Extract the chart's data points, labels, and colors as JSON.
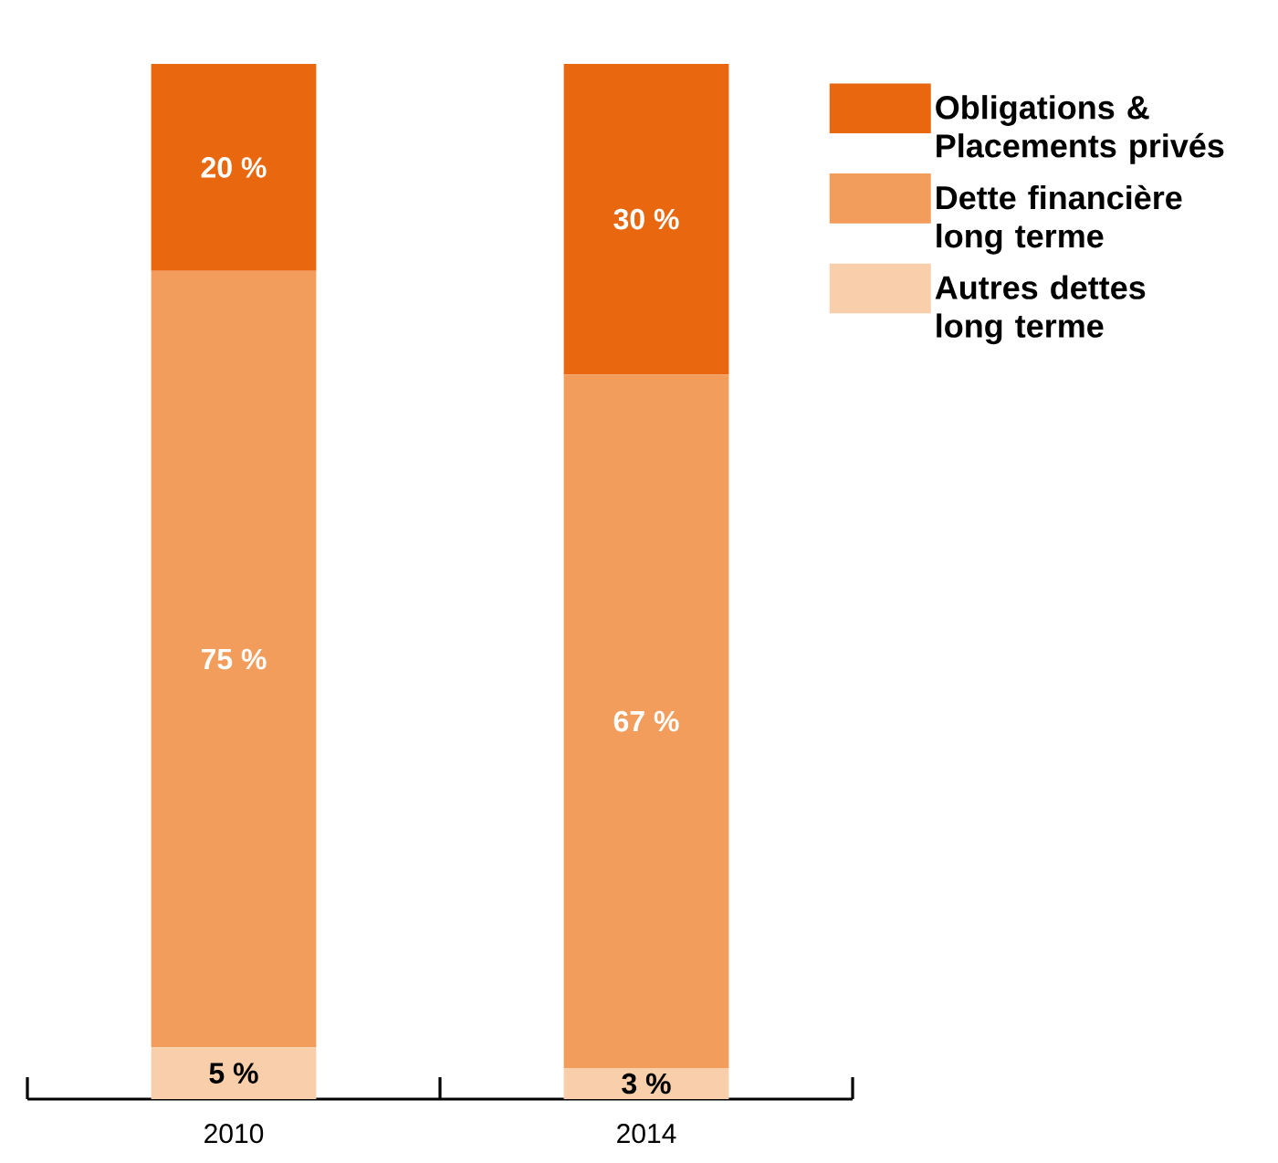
{
  "chart_data": {
    "type": "bar",
    "stacked": true,
    "categories": [
      "2010",
      "2014"
    ],
    "tick_labels": "x",
    "grid": false,
    "legend": "top right",
    "series": [
      {
        "name": "Autres dettes long terme",
        "color": "#f9ceaa",
        "values": [
          5,
          3
        ],
        "value_labels": [
          "5 %",
          "3 %"
        ]
      },
      {
        "name": "Dette financière long terme",
        "color": "#f39d5d",
        "values": [
          75,
          67
        ],
        "value_labels": [
          "75 %",
          "67 %"
        ]
      },
      {
        "name": "Obligations & Placements privés",
        "color": "#e8670f",
        "values": [
          20,
          30
        ],
        "value_labels": [
          "20 %",
          "30 %"
        ]
      }
    ]
  }
}
